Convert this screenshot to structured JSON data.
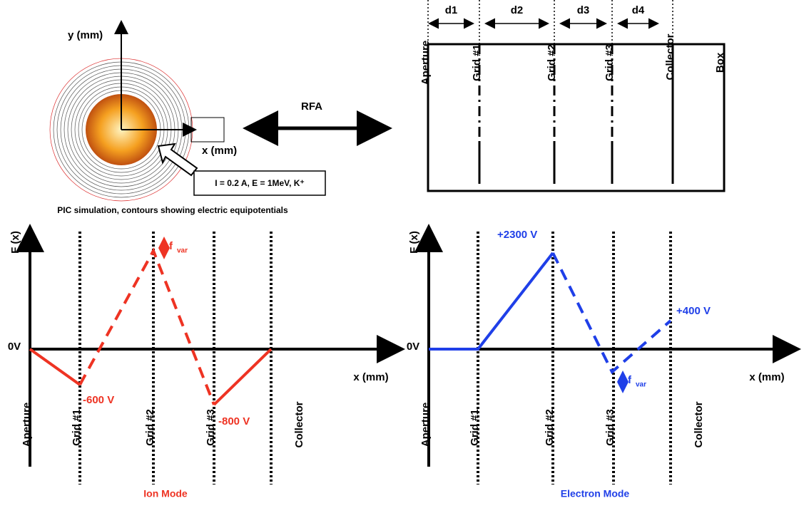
{
  "sim": {
    "y_axis": "y (mm)",
    "x_axis": "x (mm)",
    "beam_label": "I = 0.2 A, E = 1MeV, K⁺",
    "caption": "PIC simulation, contours showing electric equipotentials"
  },
  "rfa_label": "RFA",
  "rfa": {
    "gaps": [
      "d1",
      "d2",
      "d3",
      "d4"
    ],
    "elements": [
      "Aperture",
      "Grid #1",
      "Grid #2",
      "Grid #3",
      "Collector",
      "Box"
    ]
  },
  "ion_mode": {
    "y_axis": "F (x)",
    "zero": "0V",
    "x_axis": "x (mm)",
    "annotations": [
      "-600 V",
      "-800 V"
    ],
    "fvar": [
      "f",
      "var"
    ],
    "elements": [
      "Aperture",
      "Grid #1",
      "Grid #2",
      "Grid #3",
      "Collector"
    ],
    "title": "Ion Mode"
  },
  "electron_mode": {
    "y_axis": "F (x)",
    "zero": "0V",
    "x_axis": "x (mm)",
    "annotations": [
      "+2300 V",
      "+400 V"
    ],
    "fvar": [
      "f",
      "var"
    ],
    "elements": [
      "Aperture",
      "Grid #1",
      "Grid #2",
      "Grid #3",
      "Collector"
    ],
    "title": "Electron Mode"
  }
}
